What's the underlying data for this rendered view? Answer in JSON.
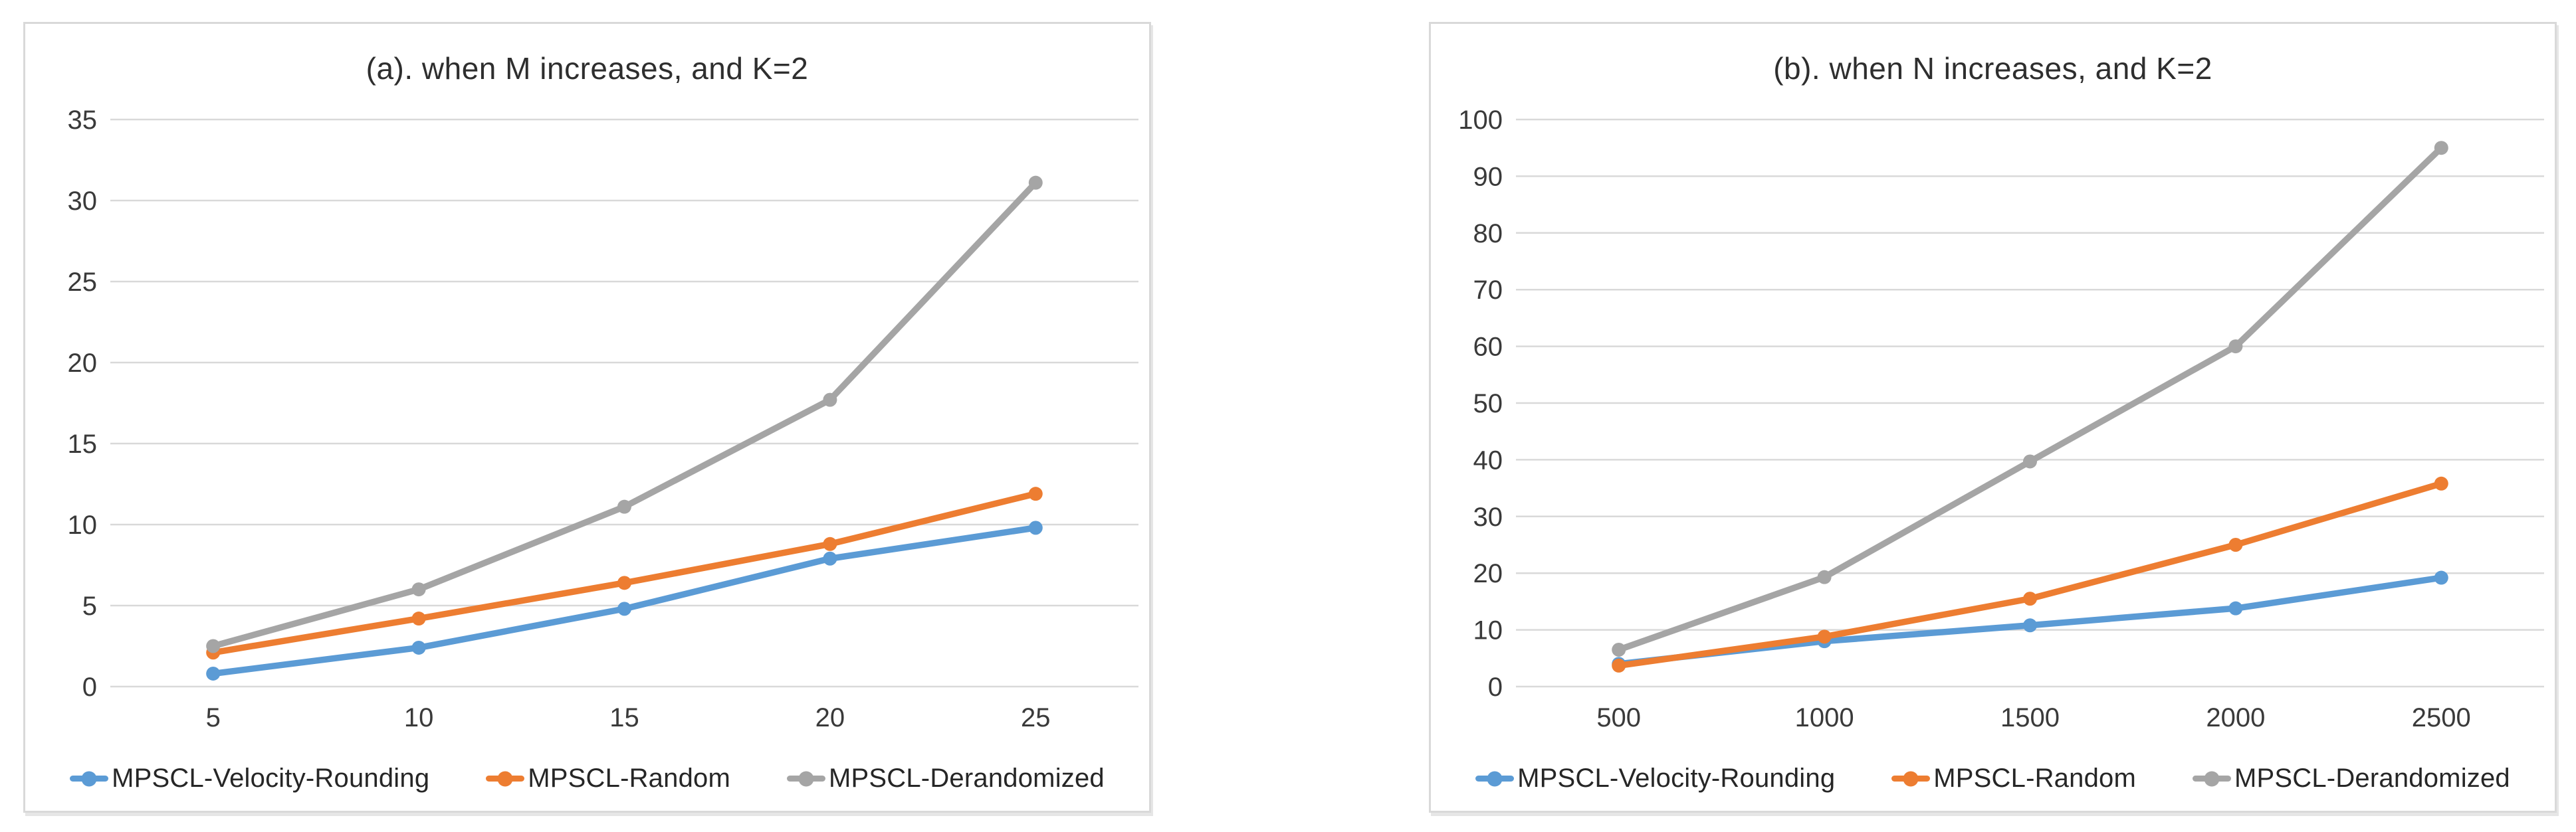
{
  "page": {
    "background": "#ffffff"
  },
  "styles": {
    "panel_border_color": "#d9d9d9",
    "gridline_color": "#d9d9d9",
    "tick_label_color": "#3a3a3a",
    "title_color": "#2e2e2e"
  },
  "chart_data": [
    {
      "type": "line",
      "title": "(a). when M increases, and K=2",
      "categories": [
        "5",
        "10",
        "15",
        "20",
        "25"
      ],
      "series": [
        {
          "name": "MPSCL-Velocity-Rounding",
          "color": "#5B9BD5",
          "values": [
            0.8,
            2.4,
            4.8,
            7.9,
            9.8
          ]
        },
        {
          "name": "MPSCL-Random",
          "color": "#ED7D31",
          "values": [
            2.1,
            4.2,
            6.4,
            8.8,
            11.9
          ]
        },
        {
          "name": "MPSCL-Derandomized",
          "color": "#A5A5A5",
          "values": [
            2.5,
            6.0,
            11.1,
            17.7,
            31.1
          ]
        }
      ],
      "xlabel": "",
      "ylabel": "",
      "ylim": [
        0,
        35
      ],
      "ytick_step": 5,
      "grid": true,
      "legend_position": "bottom"
    },
    {
      "type": "line",
      "title": "(b). when N increases, and K=2",
      "categories": [
        "500",
        "1000",
        "1500",
        "2000",
        "2500"
      ],
      "series": [
        {
          "name": "MPSCL-Velocity-Rounding",
          "color": "#5B9BD5",
          "values": [
            4.0,
            8.0,
            10.8,
            13.8,
            19.2
          ]
        },
        {
          "name": "MPSCL-Random",
          "color": "#ED7D31",
          "values": [
            3.7,
            8.8,
            15.5,
            25.0,
            35.8
          ]
        },
        {
          "name": "MPSCL-Derandomized",
          "color": "#A5A5A5",
          "values": [
            6.5,
            19.3,
            39.7,
            60.0,
            95.0
          ]
        }
      ],
      "xlabel": "",
      "ylabel": "",
      "ylim": [
        0,
        100
      ],
      "ytick_step": 10,
      "grid": true,
      "legend_position": "bottom"
    }
  ]
}
